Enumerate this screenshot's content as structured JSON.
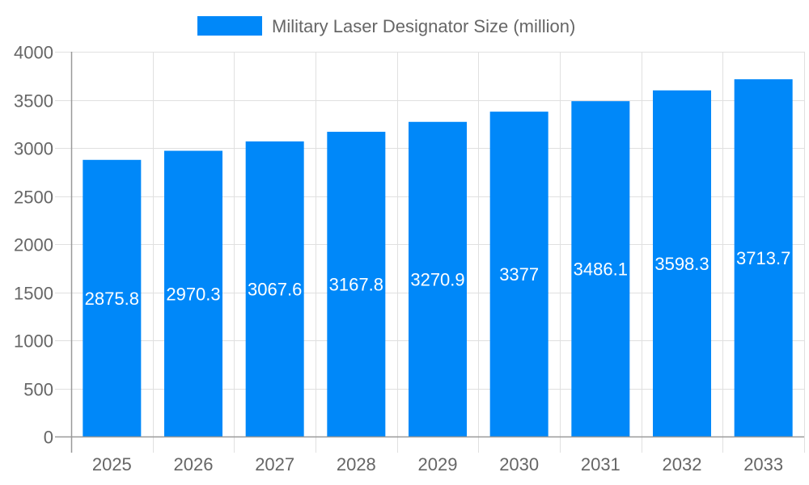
{
  "chart_data": {
    "type": "bar",
    "title": "",
    "xlabel": "",
    "ylabel": "",
    "categories": [
      "2025",
      "2026",
      "2027",
      "2028",
      "2029",
      "2030",
      "2031",
      "2032",
      "2033"
    ],
    "series": [
      {
        "name": "Military Laser Designator Size (million)",
        "values": [
          2875.8,
          2970.3,
          3067.6,
          3167.8,
          3270.9,
          3377,
          3486.1,
          3598.3,
          3713.7
        ],
        "color": "#0088f9"
      }
    ],
    "ylim": [
      0,
      4000
    ],
    "yticks": [
      0,
      500,
      1000,
      1500,
      2000,
      2500,
      3000,
      3500,
      4000
    ],
    "grid": true,
    "legend": "top",
    "data_labels": true
  }
}
